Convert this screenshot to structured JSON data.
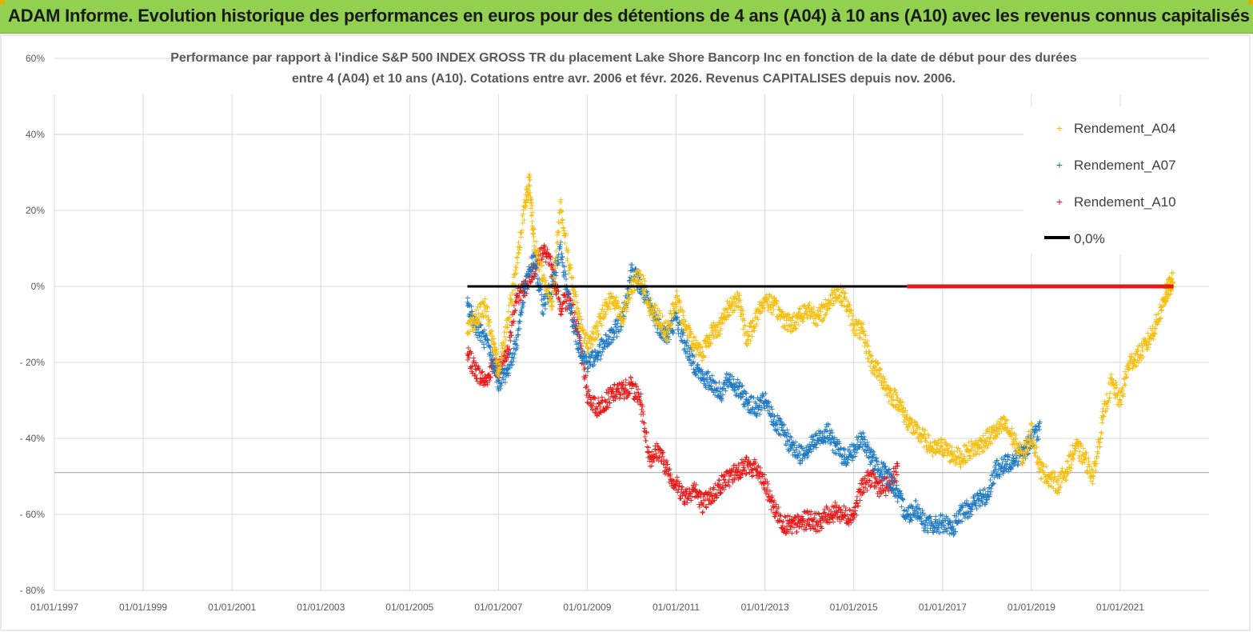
{
  "banner": {
    "title": "ADAM Informe. Evolution historique des performances en euros pour des détentions de 4 ans (A04) à 10 ans (A10) avec les revenus connus capitalisés"
  },
  "colors": {
    "banner": "#92d050",
    "a04": "#f5be10",
    "a07": "#1f7ac3",
    "a10": "#e81818",
    "zero": "#000000",
    "grid": "#d9d9d9"
  },
  "chart_data": {
    "type": "scatter",
    "title_line1": "Performance par rapport à l'indice S&P 500 INDEX GROSS TR  du placement Lake Shore Bancorp Inc en fonction de la date de début pour des durées",
    "title_line2": "entre 4 (A04) et 10 ans (A10). Cotations entre avr. 2006 et févr. 2026. Revenus CAPITALISES depuis nov. 2006.",
    "x_range": [
      1997.0,
      2023.0
    ],
    "ylim": [
      -80,
      60
    ],
    "y_ticks": [
      60,
      40,
      20,
      0,
      -20,
      -40,
      -60,
      -80
    ],
    "y_tick_labels": [
      "60%",
      "40%",
      "20%",
      "0%",
      "- 20%",
      "- 40%",
      "- 60%",
      "- 80%"
    ],
    "x_tick_years": [
      1997,
      1999,
      2001,
      2003,
      2005,
      2007,
      2009,
      2011,
      2013,
      2015,
      2017,
      2019,
      2021
    ],
    "x_tick_labels": [
      "01/01/1997",
      "01/01/1999",
      "01/01/2001",
      "01/01/2003",
      "01/01/2005",
      "01/01/2007",
      "01/01/2009",
      "01/01/2011",
      "01/01/2013",
      "01/01/2015",
      "01/01/2017",
      "01/01/2019",
      "01/01/2021"
    ],
    "legend": [
      "Rendement_A04",
      "Rendement_A07",
      "Rendement_A10",
      "0,0%"
    ],
    "series": [
      {
        "name": "Rendement_A04",
        "x": [
          2006.3,
          2006.5,
          2006.7,
          2006.9,
          2007.0,
          2007.2,
          2007.4,
          2007.6,
          2007.7,
          2007.8,
          2008.0,
          2008.2,
          2008.4,
          2008.6,
          2008.8,
          2009.0,
          2009.2,
          2009.4,
          2009.6,
          2009.8,
          2010.0,
          2010.2,
          2010.4,
          2010.6,
          2010.8,
          2011.0,
          2011.2,
          2011.4,
          2011.6,
          2011.8,
          2012.0,
          2012.2,
          2012.4,
          2012.6,
          2012.8,
          2013.0,
          2013.2,
          2013.4,
          2013.6,
          2013.8,
          2014.0,
          2014.2,
          2014.4,
          2014.6,
          2014.8,
          2015.0,
          2015.2,
          2015.4,
          2015.6,
          2015.8,
          2016.0,
          2016.2,
          2016.4,
          2016.6,
          2016.8,
          2017.0,
          2017.2,
          2017.4,
          2017.6,
          2017.8,
          2018.0,
          2018.2,
          2018.4,
          2018.6,
          2018.8,
          2019.0,
          2019.2,
          2019.4,
          2019.6,
          2019.8,
          2020.0,
          2020.2,
          2020.4,
          2020.6,
          2020.8,
          2021.0,
          2021.2,
          2021.4,
          2021.6,
          2021.8,
          2022.0,
          2022.1,
          2022.2
        ],
        "y": [
          -12,
          -8,
          -5,
          -15,
          -22,
          -10,
          5,
          22,
          28,
          12,
          3,
          -5,
          22,
          5,
          -8,
          -15,
          -12,
          -5,
          -3,
          -8,
          0,
          3,
          -5,
          -8,
          -12,
          -3,
          -10,
          -15,
          -17,
          -12,
          -10,
          -5,
          -3,
          -14,
          -8,
          -3,
          -5,
          -8,
          -10,
          -7,
          -6,
          -8,
          -5,
          -1,
          -3,
          -10,
          -12,
          -20,
          -23,
          -28,
          -30,
          -35,
          -38,
          -40,
          -43,
          -42,
          -44,
          -45,
          -43,
          -42,
          -40,
          -38,
          -36,
          -40,
          -45,
          -38,
          -48,
          -50,
          -52,
          -48,
          -42,
          -45,
          -50,
          -35,
          -25,
          -30,
          -20,
          -18,
          -15,
          -10,
          -3,
          0,
          2
        ]
      },
      {
        "name": "Rendement_A07",
        "x": [
          2006.3,
          2006.5,
          2006.7,
          2006.9,
          2007.0,
          2007.2,
          2007.4,
          2007.6,
          2007.8,
          2008.0,
          2008.2,
          2008.4,
          2008.6,
          2008.8,
          2009.0,
          2009.2,
          2009.4,
          2009.6,
          2009.8,
          2010.0,
          2010.2,
          2010.4,
          2010.6,
          2010.8,
          2011.0,
          2011.2,
          2011.4,
          2011.6,
          2011.8,
          2012.0,
          2012.2,
          2012.4,
          2012.6,
          2012.8,
          2013.0,
          2013.2,
          2013.4,
          2013.6,
          2013.8,
          2014.0,
          2014.2,
          2014.4,
          2014.6,
          2014.8,
          2015.0,
          2015.2,
          2015.4,
          2015.6,
          2015.8,
          2016.0,
          2016.2,
          2016.4,
          2016.6,
          2016.8,
          2017.0,
          2017.2,
          2017.4,
          2017.6,
          2017.8,
          2018.0,
          2018.2,
          2018.4,
          2018.6,
          2018.8,
          2019.0,
          2019.2
        ],
        "y": [
          -5,
          -10,
          -14,
          -20,
          -25,
          -22,
          -15,
          0,
          8,
          -5,
          0,
          10,
          -5,
          -15,
          -20,
          -18,
          -15,
          -12,
          -8,
          5,
          0,
          -5,
          -10,
          -13,
          -8,
          -15,
          -20,
          -24,
          -25,
          -28,
          -24,
          -27,
          -30,
          -32,
          -30,
          -35,
          -38,
          -42,
          -44,
          -42,
          -40,
          -38,
          -42,
          -45,
          -43,
          -40,
          -45,
          -48,
          -50,
          -55,
          -60,
          -58,
          -62,
          -63,
          -62,
          -64,
          -60,
          -58,
          -56,
          -55,
          -48,
          -47,
          -45,
          -44,
          -40,
          -37
        ]
      },
      {
        "name": "Rendement_A10",
        "x": [
          2006.3,
          2006.5,
          2006.7,
          2006.9,
          2007.0,
          2007.2,
          2007.4,
          2007.6,
          2007.8,
          2008.0,
          2008.2,
          2008.4,
          2008.6,
          2008.8,
          2009.0,
          2009.2,
          2009.4,
          2009.6,
          2009.8,
          2010.0,
          2010.2,
          2010.4,
          2010.6,
          2010.8,
          2011.0,
          2011.2,
          2011.4,
          2011.6,
          2011.8,
          2012.0,
          2012.2,
          2012.4,
          2012.6,
          2012.8,
          2013.0,
          2013.2,
          2013.4,
          2013.6,
          2013.8,
          2014.0,
          2014.2,
          2014.4,
          2014.6,
          2014.8,
          2015.0,
          2015.2,
          2015.4,
          2015.6,
          2015.8,
          2016.0
        ],
        "y": [
          -18,
          -22,
          -25,
          -20,
          -22,
          -18,
          -3,
          0,
          5,
          10,
          5,
          -5,
          -3,
          -12,
          -28,
          -32,
          -30,
          -28,
          -27,
          -26,
          -30,
          -45,
          -43,
          -48,
          -52,
          -55,
          -53,
          -57,
          -55,
          -52,
          -50,
          -48,
          -47,
          -48,
          -52,
          -58,
          -62,
          -63,
          -62,
          -61,
          -62,
          -60,
          -59,
          -60,
          -60,
          -52,
          -50,
          -53,
          -52,
          -48
        ]
      },
      {
        "name": "0,0%",
        "x": [
          2006.3,
          2022.2
        ],
        "y": [
          0,
          0
        ]
      }
    ]
  }
}
